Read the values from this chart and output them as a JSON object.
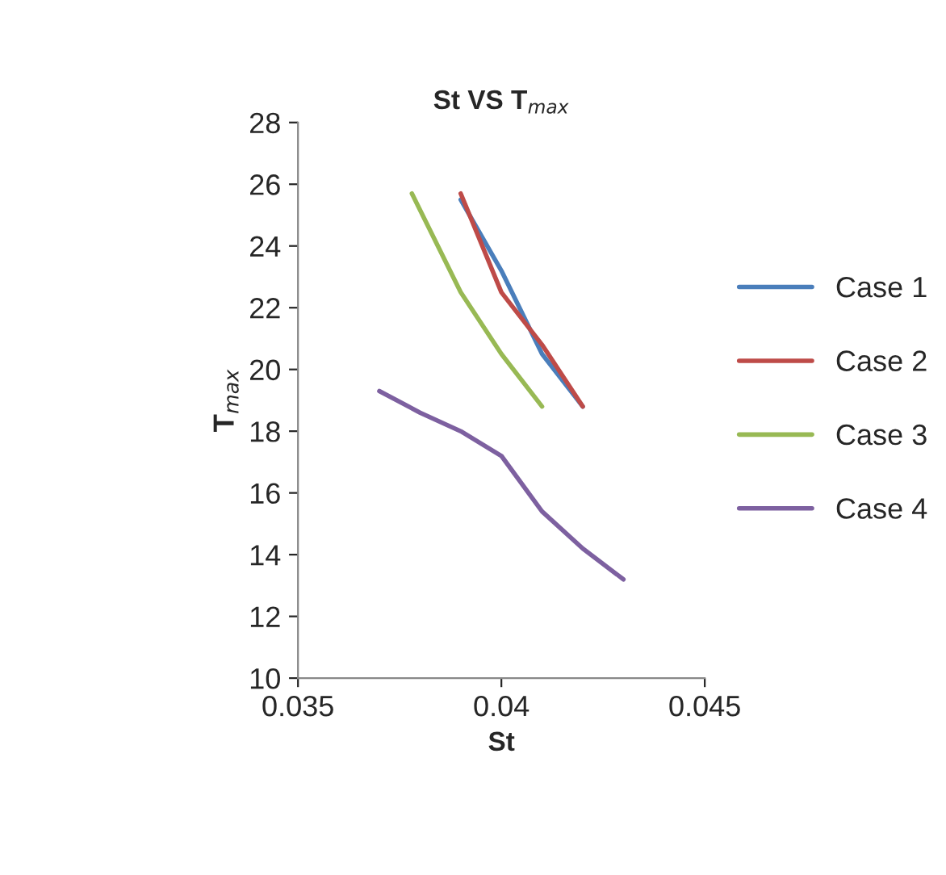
{
  "chart_data": {
    "type": "line",
    "title": "St VS T$_{max}$",
    "xlabel": "St",
    "ylabel": "T$_{max}$",
    "xlim": [
      0.035,
      0.045
    ],
    "xticks": [
      {
        "value": 0.035,
        "label": "0.035"
      },
      {
        "value": 0.04,
        "label": "0.04"
      },
      {
        "value": 0.045,
        "label": "0.045"
      }
    ],
    "ylim": [
      10,
      28
    ],
    "yticks": [
      10,
      12,
      14,
      16,
      18,
      20,
      22,
      24,
      26,
      28
    ],
    "grid": false,
    "legend": "right",
    "marker": "none",
    "series": [
      {
        "name": "Case 1",
        "color": "#4a7ebb",
        "x": [
          0.039,
          0.04,
          0.041,
          0.042
        ],
        "values": [
          25.5,
          23.2,
          20.5,
          18.8
        ]
      },
      {
        "name": "Case 2",
        "color": "#be4b48",
        "x": [
          0.039,
          0.04,
          0.041,
          0.042
        ],
        "values": [
          25.7,
          22.5,
          20.8,
          18.8
        ]
      },
      {
        "name": "Case 3",
        "color": "#98b954",
        "x": [
          0.0378,
          0.039,
          0.04,
          0.041
        ],
        "values": [
          25.7,
          22.5,
          20.5,
          18.8
        ]
      },
      {
        "name": "Case 4",
        "color": "#7d60a0",
        "x": [
          0.037,
          0.038,
          0.039,
          0.04,
          0.041,
          0.042,
          0.043
        ],
        "values": [
          19.3,
          18.6,
          18.0,
          17.2,
          15.4,
          14.2,
          13.2
        ]
      }
    ]
  }
}
